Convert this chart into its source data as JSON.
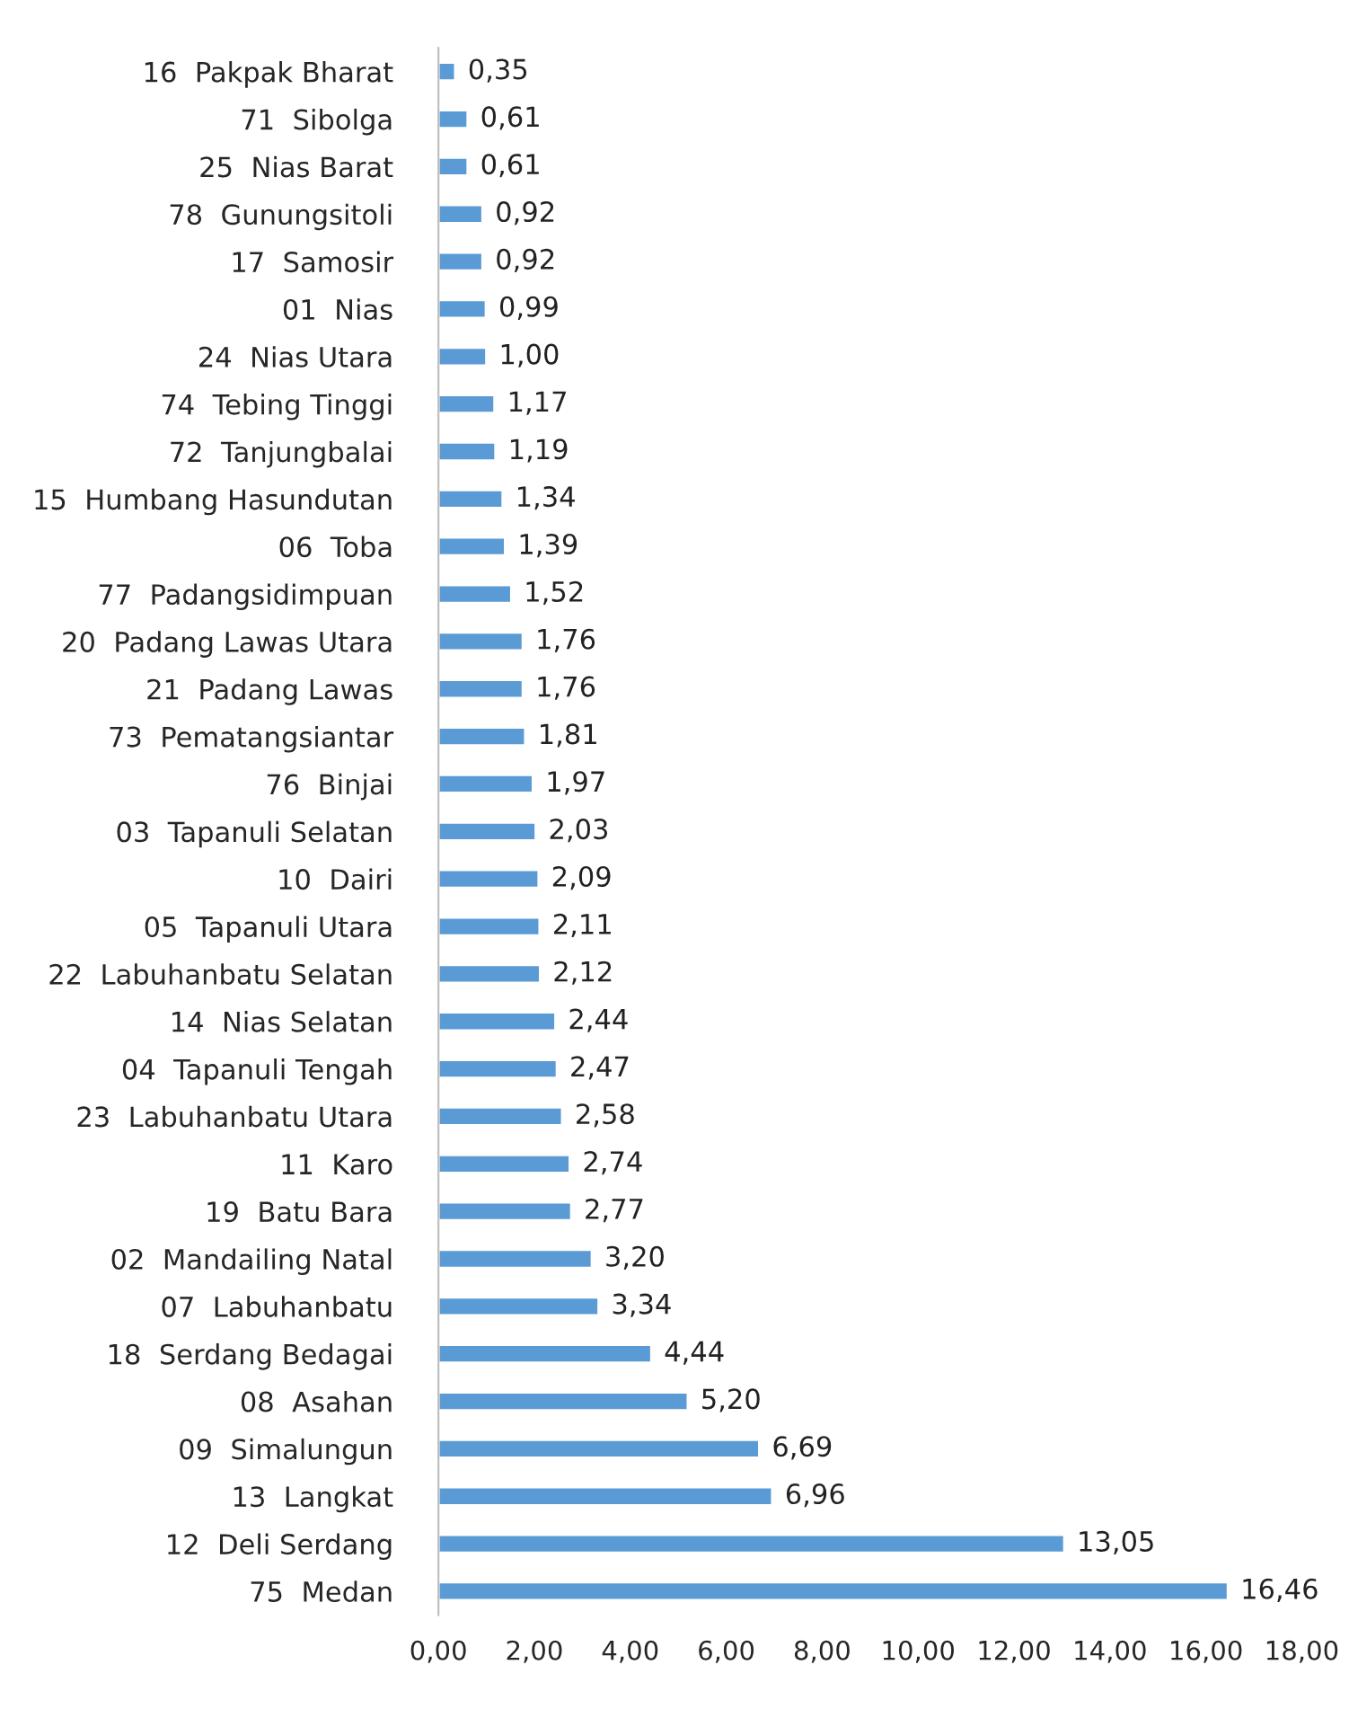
{
  "chart_data": {
    "type": "bar",
    "orientation": "horizontal",
    "categories": [
      "16  Pakpak Bharat",
      "71  Sibolga",
      "25  Nias Barat",
      "78  Gunungsitoli",
      "17  Samosir",
      "01  Nias",
      "24  Nias Utara",
      "74  Tebing Tinggi",
      "72  Tanjungbalai",
      "15  Humbang Hasundutan",
      "06  Toba",
      "77  Padangsidimpuan",
      "20  Padang Lawas Utara",
      "21  Padang Lawas",
      "73  Pematangsiantar",
      "76  Binjai",
      "03  Tapanuli Selatan",
      "10  Dairi",
      "05  Tapanuli Utara",
      "22  Labuhanbatu Selatan",
      "14  Nias Selatan",
      "04  Tapanuli Tengah",
      "23  Labuhanbatu Utara",
      "11  Karo",
      "19  Batu Bara",
      "02  Mandailing Natal",
      "07  Labuhanbatu",
      "18  Serdang Bedagai",
      "08  Asahan",
      "09  Simalungun",
      "13  Langkat",
      "12  Deli Serdang",
      "75  Medan"
    ],
    "values": [
      0.35,
      0.61,
      0.61,
      0.92,
      0.92,
      0.99,
      1.0,
      1.17,
      1.19,
      1.34,
      1.39,
      1.52,
      1.76,
      1.76,
      1.81,
      1.97,
      2.03,
      2.09,
      2.11,
      2.12,
      2.44,
      2.47,
      2.58,
      2.74,
      2.77,
      3.2,
      3.34,
      4.44,
      5.2,
      6.69,
      6.96,
      13.05,
      16.46
    ],
    "value_labels": [
      "0,35",
      "0,61",
      "0,61",
      "0,92",
      "0,92",
      "0,99",
      "1,00",
      "1,17",
      "1,19",
      "1,34",
      "1,39",
      "1,52",
      "1,76",
      "1,76",
      "1,81",
      "1,97",
      "2,03",
      "2,09",
      "2,11",
      "2,12",
      "2,44",
      "2,47",
      "2,58",
      "2,74",
      "2,77",
      "3,20",
      "3,34",
      "4,44",
      "5,20",
      "6,69",
      "6,96",
      "13,05",
      "16,46"
    ],
    "color": "#5b9bd5",
    "xlim": [
      0,
      18
    ],
    "xticks": [
      {
        "value": 0,
        "label": "0,00"
      },
      {
        "value": 2,
        "label": "2,00"
      },
      {
        "value": 4,
        "label": "4,00"
      },
      {
        "value": 6,
        "label": "6,00"
      },
      {
        "value": 8,
        "label": "8,00"
      },
      {
        "value": 10,
        "label": "10,00"
      },
      {
        "value": 12,
        "label": "12,00"
      },
      {
        "value": 14,
        "label": "14,00"
      },
      {
        "value": 16,
        "label": "16,00"
      },
      {
        "value": 18,
        "label": "18,00"
      }
    ],
    "grid": false,
    "legend": false
  }
}
